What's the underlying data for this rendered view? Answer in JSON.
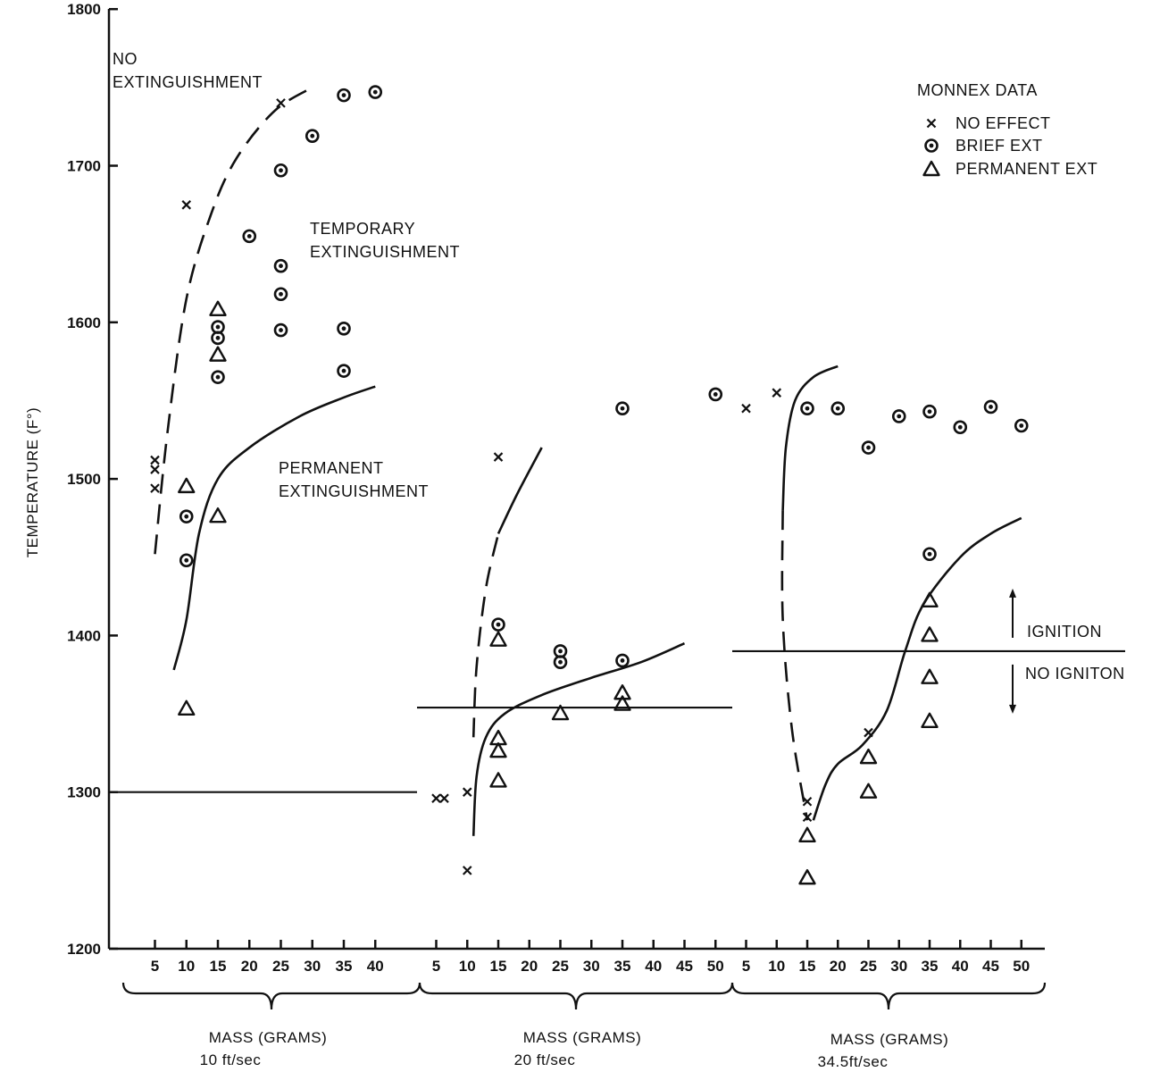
{
  "chart_data": {
    "type": "scatter",
    "title": "",
    "ylabel": "TEMPERATURE (F°)",
    "ylim": [
      1200,
      1800
    ],
    "y_ticks": [
      1200,
      1300,
      1400,
      1500,
      1600,
      1700,
      1800
    ],
    "grid": false,
    "legend": {
      "title": "MONNEX DATA",
      "placement": "top-right",
      "entries": [
        {
          "symbol": "x",
          "label": "NO EFFECT"
        },
        {
          "symbol": "circle",
          "label": "BRIEF EXT"
        },
        {
          "symbol": "triangle",
          "label": "PERMANENT EXT"
        }
      ]
    },
    "annotations": {
      "no_ext": [
        "NO",
        "EXTINGUISHMENT"
      ],
      "temp_ext": [
        "TEMPORARY",
        "EXTINGUISHMENT"
      ],
      "perm_ext": [
        "PERMANENT",
        "EXTINGUISHMENT"
      ],
      "ignition": "IGNITION",
      "no_ignition": "NO IGNITON"
    },
    "groups": [
      {
        "label": "MASS (GRAMS)",
        "sublabel": "10 ft/sec",
        "ticks": [
          5,
          10,
          15,
          20,
          25,
          30,
          35,
          40
        ],
        "ignition_line": 1300,
        "points": {
          "no_effect": [
            [
              5,
              1512
            ],
            [
              5,
              1506
            ],
            [
              5,
              1494
            ],
            [
              10,
              1675
            ],
            [
              25,
              1740
            ]
          ],
          "brief_ext": [
            [
              10,
              1476
            ],
            [
              10,
              1448
            ],
            [
              15,
              1597
            ],
            [
              15,
              1590
            ],
            [
              15,
              1565
            ],
            [
              20,
              1655
            ],
            [
              25,
              1697
            ],
            [
              25,
              1636
            ],
            [
              25,
              1618
            ],
            [
              25,
              1595
            ],
            [
              30,
              1719
            ],
            [
              35,
              1745
            ],
            [
              35,
              1596
            ],
            [
              35,
              1569
            ],
            [
              40,
              1747
            ]
          ],
          "permanent_ext": [
            [
              10,
              1495
            ],
            [
              10,
              1353
            ],
            [
              15,
              1608
            ],
            [
              15,
              1579
            ],
            [
              15,
              1476
            ]
          ]
        },
        "dashed_curve": [
          [
            5,
            1452
          ],
          [
            7,
            1530
          ],
          [
            10,
            1615
          ],
          [
            14,
            1670
          ],
          [
            18,
            1705
          ],
          [
            24,
            1735
          ],
          [
            30,
            1750
          ]
        ],
        "solid_curve": [
          [
            8,
            1378
          ],
          [
            10,
            1410
          ],
          [
            12,
            1465
          ],
          [
            15,
            1500
          ],
          [
            20,
            1520
          ],
          [
            28,
            1540
          ],
          [
            35,
            1552
          ],
          [
            40,
            1559
          ]
        ]
      },
      {
        "label": "MASS (GRAMS)",
        "sublabel": "20 ft/sec",
        "ticks": [
          5,
          10,
          15,
          20,
          25,
          30,
          35,
          40,
          45,
          50
        ],
        "ignition_line": 1354,
        "points": {
          "no_effect": [
            [
              5,
              1296
            ],
            [
              6.3,
              1296
            ],
            [
              10,
              1300
            ],
            [
              10,
              1250
            ],
            [
              15,
              1514
            ]
          ],
          "brief_ext": [
            [
              15,
              1407
            ],
            [
              25,
              1390
            ],
            [
              25,
              1383
            ],
            [
              35,
              1384
            ],
            [
              35,
              1545
            ],
            [
              50,
              1554
            ]
          ],
          "permanent_ext": [
            [
              15,
              1397
            ],
            [
              15,
              1334
            ],
            [
              15,
              1326
            ],
            [
              15,
              1307
            ],
            [
              25,
              1350
            ],
            [
              35,
              1363
            ],
            [
              35,
              1356
            ]
          ]
        },
        "dashed_curve": [
          [
            11,
            1335
          ],
          [
            11.5,
            1380
          ],
          [
            13,
            1430
          ],
          [
            15,
            1465
          ]
        ],
        "solid_curve_upper": [
          [
            15,
            1465
          ],
          [
            18,
            1490
          ],
          [
            22,
            1520
          ]
        ],
        "solid_curve": [
          [
            11,
            1272
          ],
          [
            11.5,
            1310
          ],
          [
            13,
            1335
          ],
          [
            16,
            1350
          ],
          [
            22,
            1362
          ],
          [
            30,
            1373
          ],
          [
            38,
            1383
          ],
          [
            45,
            1395
          ]
        ]
      },
      {
        "label": "MASS (GRAMS)",
        "sublabel": "34.5ft/sec",
        "ticks": [
          5,
          10,
          15,
          20,
          25,
          30,
          35,
          40,
          45,
          50
        ],
        "ignition_line": 1390,
        "points": {
          "no_effect": [
            [
              5,
              1545
            ],
            [
              10,
              1555
            ],
            [
              15,
              1294
            ],
            [
              15,
              1284
            ],
            [
              25,
              1338
            ]
          ],
          "brief_ext": [
            [
              15,
              1545
            ],
            [
              20,
              1545
            ],
            [
              25,
              1520
            ],
            [
              30,
              1540
            ],
            [
              35,
              1543
            ],
            [
              35,
              1452
            ],
            [
              40,
              1533
            ],
            [
              45,
              1546
            ],
            [
              50,
              1534
            ]
          ],
          "permanent_ext": [
            [
              15,
              1272
            ],
            [
              15,
              1245
            ],
            [
              25,
              1322
            ],
            [
              25,
              1300
            ],
            [
              35,
              1422
            ],
            [
              35,
              1400
            ],
            [
              35,
              1373
            ],
            [
              35,
              1345
            ]
          ]
        },
        "dashed_curve": [
          [
            11,
            1480
          ],
          [
            11,
            1410
          ],
          [
            12.5,
            1340
          ],
          [
            15,
            1282
          ]
        ],
        "solid_curve_upper": [
          [
            11,
            1480
          ],
          [
            11.5,
            1520
          ],
          [
            13,
            1550
          ],
          [
            16,
            1565
          ],
          [
            20,
            1572
          ]
        ],
        "solid_curve": [
          [
            16,
            1282
          ],
          [
            18,
            1305
          ],
          [
            20,
            1318
          ],
          [
            24,
            1330
          ],
          [
            28,
            1352
          ],
          [
            31,
            1390
          ],
          [
            34,
            1420
          ],
          [
            40,
            1450
          ],
          [
            45,
            1465
          ],
          [
            50,
            1475
          ]
        ]
      }
    ]
  }
}
